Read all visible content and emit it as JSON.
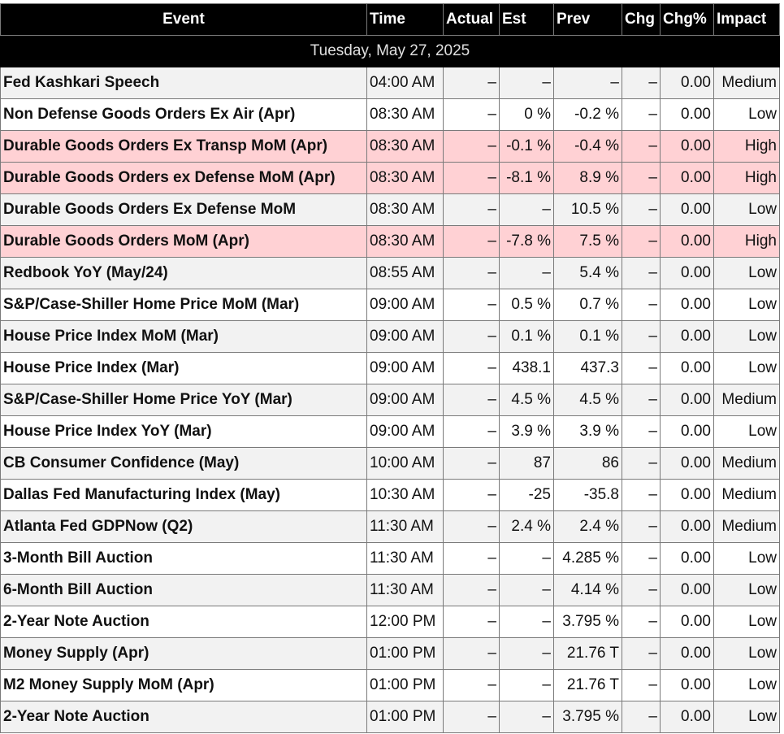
{
  "columns": {
    "event": "Event",
    "time": "Time",
    "actual": "Actual",
    "est": "Est",
    "prev": "Prev",
    "chg": "Chg",
    "chg_pct": "Chg%",
    "impact": "Impact"
  },
  "date_label": "Tuesday, May 27, 2025",
  "colors": {
    "header_bg": "#000000",
    "high_impact_row": "#ffd1d4",
    "alt_row": "#f2f2f2"
  },
  "rows": [
    {
      "event": "Fed Kashkari Speech",
      "time": "04:00 AM",
      "actual": "–",
      "est": "–",
      "prev": "–",
      "chg": "–",
      "chg_pct": "0.00",
      "impact": "Medium"
    },
    {
      "event": "Non Defense Goods Orders Ex Air (Apr)",
      "time": "08:30 AM",
      "actual": "–",
      "est": "0 %",
      "prev": "-0.2 %",
      "chg": "–",
      "chg_pct": "0.00",
      "impact": "Low"
    },
    {
      "event": "Durable Goods Orders Ex Transp MoM (Apr)",
      "time": "08:30 AM",
      "actual": "–",
      "est": "-0.1 %",
      "prev": "-0.4 %",
      "chg": "–",
      "chg_pct": "0.00",
      "impact": "High"
    },
    {
      "event": "Durable Goods Orders ex Defense MoM (Apr)",
      "time": "08:30 AM",
      "actual": "–",
      "est": "-8.1 %",
      "prev": "8.9 %",
      "chg": "–",
      "chg_pct": "0.00",
      "impact": "High"
    },
    {
      "event": "Durable Goods Orders Ex Defense MoM",
      "time": "08:30 AM",
      "actual": "–",
      "est": "–",
      "prev": "10.5 %",
      "chg": "–",
      "chg_pct": "0.00",
      "impact": "Low"
    },
    {
      "event": "Durable Goods Orders MoM (Apr)",
      "time": "08:30 AM",
      "actual": "–",
      "est": "-7.8 %",
      "prev": "7.5 %",
      "chg": "–",
      "chg_pct": "0.00",
      "impact": "High"
    },
    {
      "event": "Redbook YoY (May/24)",
      "time": "08:55 AM",
      "actual": "–",
      "est": "–",
      "prev": "5.4 %",
      "chg": "–",
      "chg_pct": "0.00",
      "impact": "Low"
    },
    {
      "event": "S&P/Case-Shiller Home Price MoM (Mar)",
      "time": "09:00 AM",
      "actual": "–",
      "est": "0.5 %",
      "prev": "0.7 %",
      "chg": "–",
      "chg_pct": "0.00",
      "impact": "Low"
    },
    {
      "event": "House Price Index MoM (Mar)",
      "time": "09:00 AM",
      "actual": "–",
      "est": "0.1 %",
      "prev": "0.1 %",
      "chg": "–",
      "chg_pct": "0.00",
      "impact": "Low"
    },
    {
      "event": "House Price Index (Mar)",
      "time": "09:00 AM",
      "actual": "–",
      "est": "438.1",
      "prev": "437.3",
      "chg": "–",
      "chg_pct": "0.00",
      "impact": "Low"
    },
    {
      "event": "S&P/Case-Shiller Home Price YoY (Mar)",
      "time": "09:00 AM",
      "actual": "–",
      "est": "4.5 %",
      "prev": "4.5 %",
      "chg": "–",
      "chg_pct": "0.00",
      "impact": "Medium"
    },
    {
      "event": "House Price Index YoY (Mar)",
      "time": "09:00 AM",
      "actual": "–",
      "est": "3.9 %",
      "prev": "3.9 %",
      "chg": "–",
      "chg_pct": "0.00",
      "impact": "Low"
    },
    {
      "event": "CB Consumer Confidence (May)",
      "time": "10:00 AM",
      "actual": "–",
      "est": "87",
      "prev": "86",
      "chg": "–",
      "chg_pct": "0.00",
      "impact": "Medium"
    },
    {
      "event": "Dallas Fed Manufacturing Index (May)",
      "time": "10:30 AM",
      "actual": "–",
      "est": "-25",
      "prev": "-35.8",
      "chg": "–",
      "chg_pct": "0.00",
      "impact": "Medium"
    },
    {
      "event": "Atlanta Fed GDPNow (Q2)",
      "time": "11:30 AM",
      "actual": "–",
      "est": "2.4 %",
      "prev": "2.4 %",
      "chg": "–",
      "chg_pct": "0.00",
      "impact": "Medium"
    },
    {
      "event": "3-Month Bill Auction",
      "time": "11:30 AM",
      "actual": "–",
      "est": "–",
      "prev": "4.285 %",
      "chg": "–",
      "chg_pct": "0.00",
      "impact": "Low"
    },
    {
      "event": "6-Month Bill Auction",
      "time": "11:30 AM",
      "actual": "–",
      "est": "–",
      "prev": "4.14 %",
      "chg": "–",
      "chg_pct": "0.00",
      "impact": "Low"
    },
    {
      "event": "2-Year Note Auction",
      "time": "12:00 PM",
      "actual": "–",
      "est": "–",
      "prev": "3.795 %",
      "chg": "–",
      "chg_pct": "0.00",
      "impact": "Low"
    },
    {
      "event": "Money Supply (Apr)",
      "time": "01:00 PM",
      "actual": "–",
      "est": "–",
      "prev": "21.76 T",
      "chg": "–",
      "chg_pct": "0.00",
      "impact": "Low"
    },
    {
      "event": "M2 Money Supply MoM (Apr)",
      "time": "01:00 PM",
      "actual": "–",
      "est": "–",
      "prev": "21.76 T",
      "chg": "–",
      "chg_pct": "0.00",
      "impact": "Low"
    },
    {
      "event": "2-Year Note Auction",
      "time": "01:00 PM",
      "actual": "–",
      "est": "–",
      "prev": "3.795 %",
      "chg": "–",
      "chg_pct": "0.00",
      "impact": "Low"
    }
  ]
}
